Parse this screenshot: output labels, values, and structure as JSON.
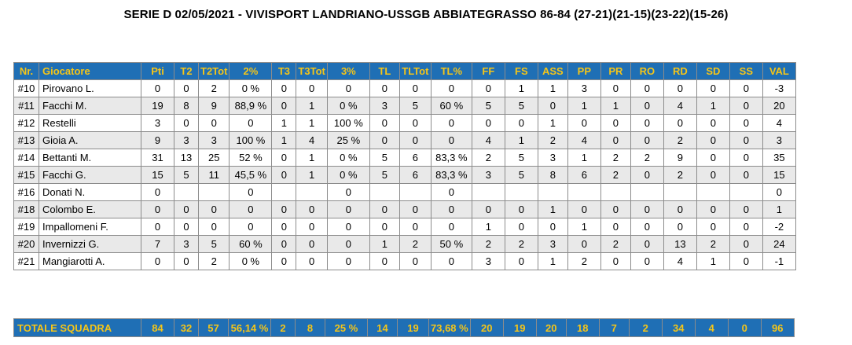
{
  "title": "SERIE D 02/05/2021 - VIVISPORT LANDRIANO-USSGB ABBIATEGRASSO 86-84 (27-21)(21-15)(23-22)(15-26)",
  "columns": [
    "Nr.",
    "Giocatore",
    "Pti",
    "T2",
    "T2Tot",
    "2%",
    "T3",
    "T3Tot",
    "3%",
    "TL",
    "TLTot",
    "TL%",
    "FF",
    "FS",
    "ASS",
    "PP",
    "PR",
    "RO",
    "RD",
    "SD",
    "SS",
    "VAL"
  ],
  "rows": [
    [
      "#10",
      "Pirovano L.",
      "0",
      "0",
      "2",
      "0 %",
      "0",
      "0",
      "0",
      "0",
      "0",
      "0",
      "0",
      "1",
      "1",
      "3",
      "0",
      "0",
      "0",
      "0",
      "0",
      "-3"
    ],
    [
      "#11",
      "Facchi M.",
      "19",
      "8",
      "9",
      "88,9 %",
      "0",
      "1",
      "0 %",
      "3",
      "5",
      "60 %",
      "5",
      "5",
      "0",
      "1",
      "1",
      "0",
      "4",
      "1",
      "0",
      "20"
    ],
    [
      "#12",
      "Restelli",
      "3",
      "0",
      "0",
      "0",
      "1",
      "1",
      "100 %",
      "0",
      "0",
      "0",
      "0",
      "0",
      "1",
      "0",
      "0",
      "0",
      "0",
      "0",
      "0",
      "4"
    ],
    [
      "#13",
      "Gioia A.",
      "9",
      "3",
      "3",
      "100 %",
      "1",
      "4",
      "25 %",
      "0",
      "0",
      "0",
      "4",
      "1",
      "2",
      "4",
      "0",
      "0",
      "2",
      "0",
      "0",
      "3"
    ],
    [
      "#14",
      "Bettanti M.",
      "31",
      "13",
      "25",
      "52 %",
      "0",
      "1",
      "0 %",
      "5",
      "6",
      "83,3 %",
      "2",
      "5",
      "3",
      "1",
      "2",
      "2",
      "9",
      "0",
      "0",
      "35"
    ],
    [
      "#15",
      "Facchi G.",
      "15",
      "5",
      "11",
      "45,5 %",
      "0",
      "1",
      "0 %",
      "5",
      "6",
      "83,3 %",
      "3",
      "5",
      "8",
      "6",
      "2",
      "0",
      "2",
      "0",
      "0",
      "15"
    ],
    [
      "#16",
      "Donati N.",
      "0",
      "",
      "",
      "0",
      "",
      "",
      "0",
      "",
      "",
      "0",
      "",
      "",
      "",
      "",
      "",
      "",
      "",
      "",
      "",
      "0"
    ],
    [
      "#18",
      "Colombo E.",
      "0",
      "0",
      "0",
      "0",
      "0",
      "0",
      "0",
      "0",
      "0",
      "0",
      "0",
      "0",
      "1",
      "0",
      "0",
      "0",
      "0",
      "0",
      "0",
      "1"
    ],
    [
      "#19",
      "Impallomeni F.",
      "0",
      "0",
      "0",
      "0",
      "0",
      "0",
      "0",
      "0",
      "0",
      "0",
      "1",
      "0",
      "0",
      "1",
      "0",
      "0",
      "0",
      "0",
      "0",
      "-2"
    ],
    [
      "#20",
      "Invernizzi G.",
      "7",
      "3",
      "5",
      "60 %",
      "0",
      "0",
      "0",
      "1",
      "2",
      "50 %",
      "2",
      "2",
      "3",
      "0",
      "2",
      "0",
      "13",
      "2",
      "0",
      "24"
    ],
    [
      "#21",
      "Mangiarotti A.",
      "0",
      "0",
      "2",
      "0 %",
      "0",
      "0",
      "0",
      "0",
      "0",
      "0",
      "3",
      "0",
      "1",
      "2",
      "0",
      "0",
      "4",
      "1",
      "0",
      "-1"
    ]
  ],
  "totals": [
    "TOTALE SQUADRA",
    "84",
    "32",
    "57",
    "56,14 %",
    "2",
    "8",
    "25 %",
    "14",
    "19",
    "73,68 %",
    "20",
    "19",
    "20",
    "18",
    "7",
    "2",
    "34",
    "4",
    "0",
    "96"
  ],
  "colors": {
    "header_bg": "#1f6fb5",
    "header_text": "#f5c518",
    "stripe": "#e9e9e9"
  }
}
